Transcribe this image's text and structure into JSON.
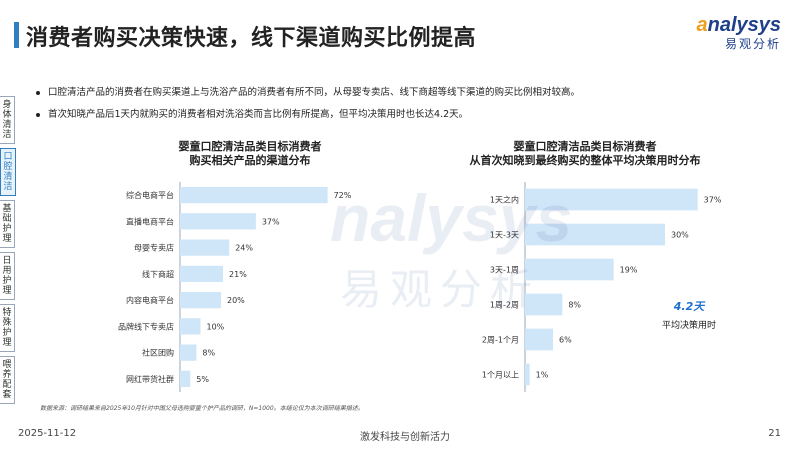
{
  "header": {
    "title": "消费者购买决策快速，线下渠道购买比例提高",
    "logo_en": "nalysys",
    "logo_en_initial": "a",
    "logo_cn": "易观分析"
  },
  "sidebar": {
    "items": [
      {
        "label": "身体清洁",
        "active": false
      },
      {
        "label": "口腔清洁",
        "active": true
      },
      {
        "label": "基础护理",
        "active": false
      },
      {
        "label": "日用护理",
        "active": false
      },
      {
        "label": "特殊护理",
        "active": false
      },
      {
        "label": "喂养配套",
        "active": false
      }
    ]
  },
  "bullets": [
    "口腔清洁产品的消费者在购买渠道上与洗浴产品的消费者有所不同，从母婴专卖店、线下商超等线下渠道的购买比例相对较高。",
    "首次知晓产品后1天内就购买的消费者相对洗浴类而言比例有所提高，但平均决策用时也长达4.2天。"
  ],
  "average": {
    "value": "4.2天",
    "label": "平均决策用时"
  },
  "footnote": "数据来源：调研结果来自2025年10月针对中国父母选购婴童个护产品的调研，N=1000。本结论仅为本次调研结果描述。",
  "footer": {
    "date": "2025-11-12",
    "slogan": "激发科技与创新活力",
    "page": "21"
  },
  "colors": {
    "bar": "#cfe5f8",
    "accent": "#2f7fc1",
    "axis": "#9aa7b8"
  },
  "chart_data": [
    {
      "type": "bar",
      "orientation": "horizontal",
      "title_line1": "婴童口腔清洁品类目标消费者",
      "title_line2": "购买相关产品的渠道分布",
      "categories": [
        "综合电商平台",
        "直播电商平台",
        "母婴专卖店",
        "线下商超",
        "内容电商平台",
        "品牌线下专卖店",
        "社区团购",
        "网红带货社群"
      ],
      "values": [
        72,
        37,
        24,
        21,
        20,
        10,
        8,
        5
      ],
      "labels": [
        "72%",
        "37%",
        "24%",
        "21%",
        "20%",
        "10%",
        "8%",
        "5%"
      ],
      "unit": "%",
      "xlim": [
        0,
        100
      ]
    },
    {
      "type": "bar",
      "orientation": "horizontal",
      "title_line1": "婴童口腔清洁品类目标消费者",
      "title_line2": "从首次知晓到最终购买的整体平均决策用时分布",
      "categories": [
        "1天之内",
        "1天-3天",
        "3天-1周",
        "1周-2周",
        "2周-1个月",
        "1个月以上"
      ],
      "values": [
        37,
        30,
        19,
        8,
        6,
        1
      ],
      "labels": [
        "37%",
        "30%",
        "19%",
        "8%",
        "6%",
        "1%"
      ],
      "unit": "%",
      "xlim": [
        0,
        45
      ]
    }
  ]
}
